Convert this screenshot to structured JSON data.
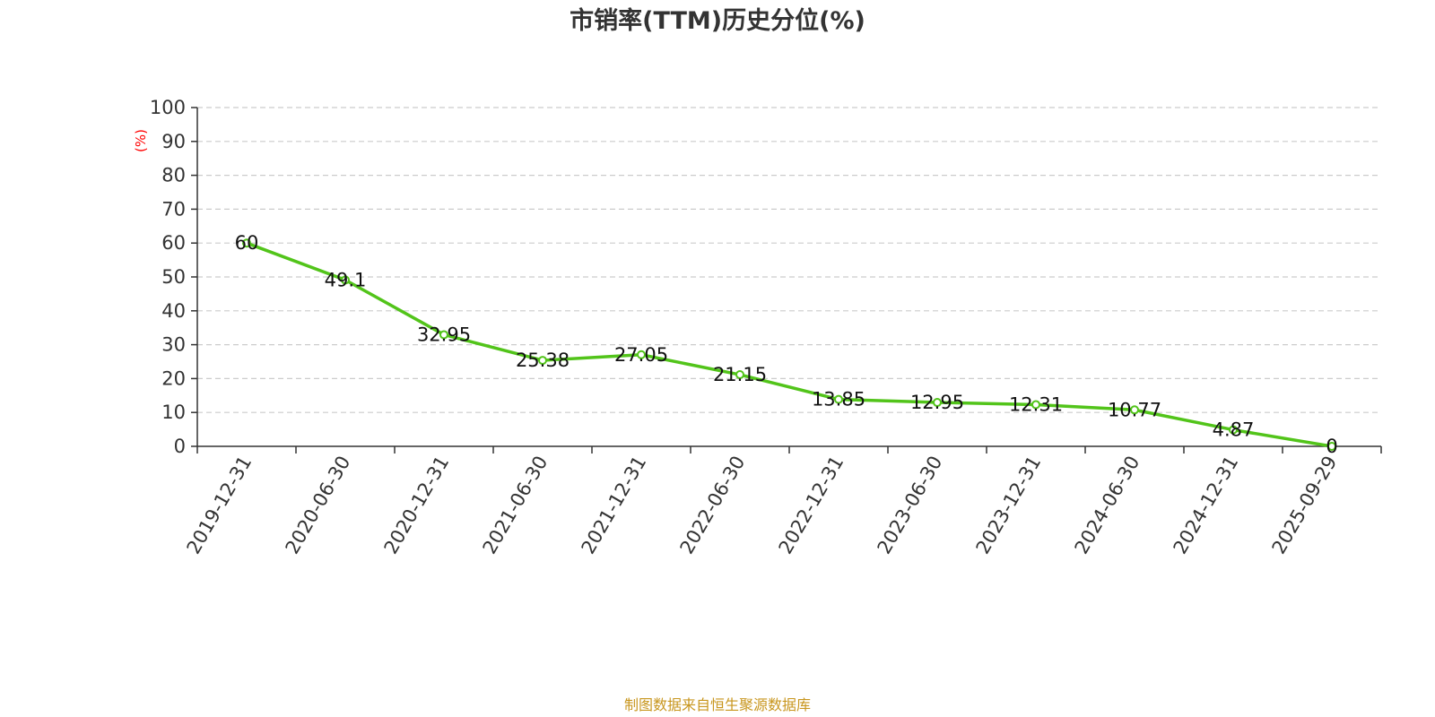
{
  "chart_data": {
    "type": "line",
    "title": "市销率(TTM)历史分位(%)",
    "ylabel": "(%)",
    "xlabel": "",
    "ylim": [
      0,
      100
    ],
    "yticks": [
      0,
      10,
      20,
      30,
      40,
      50,
      60,
      70,
      80,
      90,
      100
    ],
    "grid": true,
    "categories": [
      "2019-12-31",
      "2020-06-30",
      "2020-12-31",
      "2021-06-30",
      "2021-12-31",
      "2022-06-30",
      "2022-12-31",
      "2023-06-30",
      "2023-12-31",
      "2024-06-30",
      "2024-12-31",
      "2025-09-29"
    ],
    "series": [
      {
        "values": [
          60,
          49.1,
          32.95,
          25.38,
          27.05,
          21.15,
          13.85,
          12.95,
          12.31,
          10.77,
          4.87,
          0
        ],
        "labels": [
          "60",
          "49.1",
          "32.95",
          "25.38",
          "27.05",
          "21.15",
          "13.85",
          "12.95",
          "12.31",
          "10.77",
          "4.87",
          "0"
        ],
        "color": "#52c41a"
      }
    ]
  },
  "colors": {
    "line": "#52c41a",
    "axis": "#333333",
    "grid": "#cccccc",
    "ylabel": "#ff0000",
    "source": "#c8961e"
  },
  "source_text": "制图数据来自恒生聚源数据库"
}
